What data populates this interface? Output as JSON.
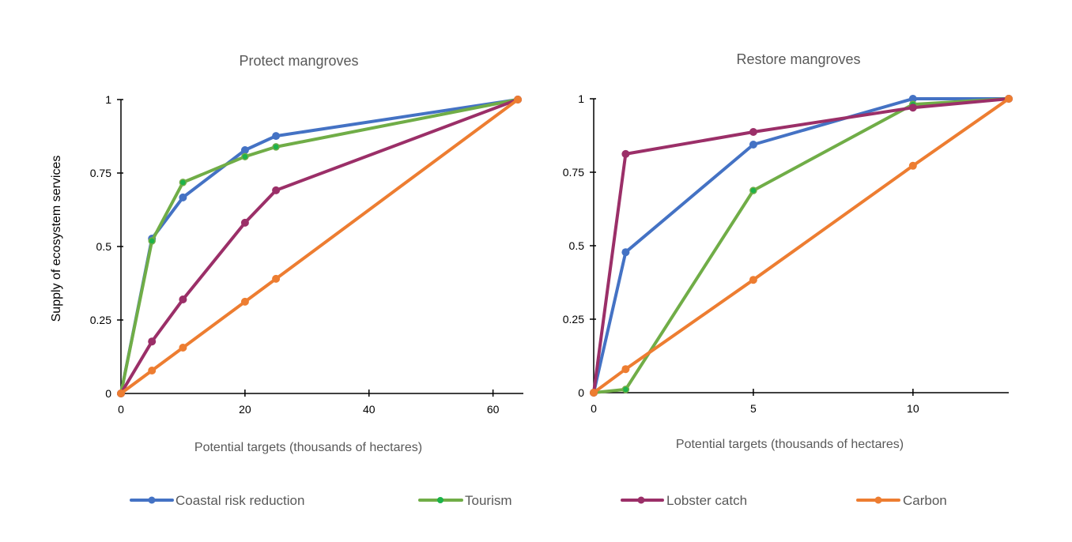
{
  "legend": [
    {
      "name": "Coastal risk reduction",
      "color": "#4472C4",
      "marker": "#4472C4"
    },
    {
      "name": "Tourism",
      "color": "#70AD47",
      "marker": "#1DB34A"
    },
    {
      "name": "Lobster catch",
      "color": "#9B2F68",
      "marker": "#9B2F68"
    },
    {
      "name": "Carbon",
      "color": "#ED7D31",
      "marker": "#ED7D31"
    }
  ],
  "chart_data": [
    {
      "type": "line",
      "title": "Protect mangroves",
      "xlabel": "Potential targets (thousands of hectares)",
      "ylabel": "Supply of ecosystem services",
      "xlim": [
        0,
        65
      ],
      "ylim": [
        0,
        1
      ],
      "xticks": [
        0,
        20,
        40,
        60
      ],
      "xtick_labels": [
        "0",
        "20",
        "40",
        "60"
      ],
      "yticks": [
        0,
        0.25,
        0.5,
        0.75,
        1
      ],
      "ytick_labels": [
        "0",
        "0.25",
        "0.5",
        "0.75",
        "1"
      ],
      "grid": false,
      "x": [
        0,
        5,
        10,
        20,
        25,
        64
      ],
      "series": [
        {
          "name": "Coastal risk reduction",
          "values": [
            0,
            0.527,
            0.667,
            0.828,
            0.876,
            1
          ]
        },
        {
          "name": "Tourism",
          "values": [
            0,
            0.519,
            0.718,
            0.806,
            0.839,
            1
          ]
        },
        {
          "name": "Lobster catch",
          "values": [
            0,
            0.177,
            0.32,
            0.581,
            0.691,
            1
          ]
        },
        {
          "name": "Carbon",
          "values": [
            0,
            0.078,
            0.156,
            0.312,
            0.39,
            1
          ]
        }
      ]
    },
    {
      "type": "line",
      "title": "Restore mangroves",
      "xlabel": "Potential targets (thousands of hectares)",
      "ylabel": "",
      "xlim": [
        0,
        13
      ],
      "ylim": [
        0,
        1
      ],
      "xticks": [
        0,
        5,
        10
      ],
      "xtick_labels": [
        "0",
        "5",
        "10"
      ],
      "yticks": [
        0,
        0.25,
        0.5,
        0.75,
        1
      ],
      "ytick_labels": [
        "0",
        "0.25",
        "0.5",
        "0.75",
        "1"
      ],
      "grid": false,
      "x": [
        0,
        1,
        5,
        10,
        13
      ],
      "series": [
        {
          "name": "Coastal risk reduction",
          "values": [
            0,
            0.478,
            0.844,
            1,
            1
          ]
        },
        {
          "name": "Tourism",
          "values": [
            0,
            0.011,
            0.688,
            0.981,
            1
          ]
        },
        {
          "name": "Lobster catch",
          "values": [
            0,
            0.812,
            0.887,
            0.97,
            1
          ]
        },
        {
          "name": "Carbon",
          "values": [
            0,
            0.08,
            0.384,
            0.772,
            1
          ]
        }
      ]
    }
  ]
}
